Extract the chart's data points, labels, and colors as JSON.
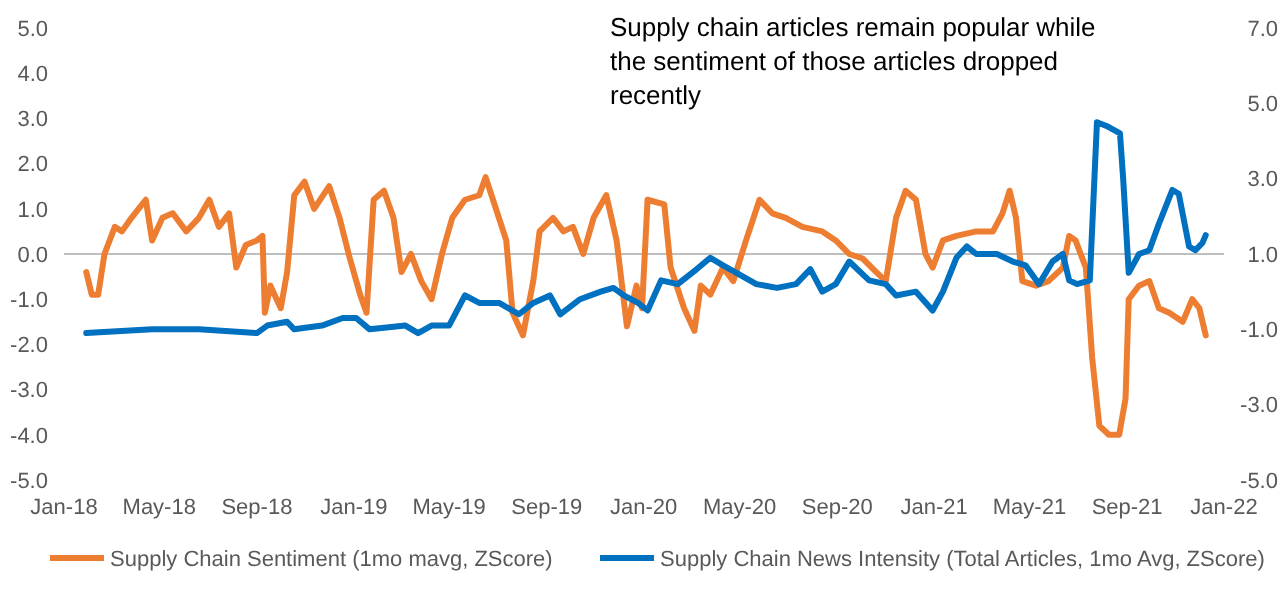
{
  "chart_data": {
    "type": "line",
    "title": "Supply chain articles remain popular while the sentiment of those articles dropped recently",
    "xlim": [
      "2018-01-01",
      "2022-01-01"
    ],
    "xticks": [
      {
        "value": "2018-01-01",
        "label": "Jan-18"
      },
      {
        "value": "2018-05-01",
        "label": "May-18"
      },
      {
        "value": "2018-09-01",
        "label": "Sep-18"
      },
      {
        "value": "2019-01-01",
        "label": "Jan-19"
      },
      {
        "value": "2019-05-01",
        "label": "May-19"
      },
      {
        "value": "2019-09-01",
        "label": "Sep-19"
      },
      {
        "value": "2020-01-01",
        "label": "Jan-20"
      },
      {
        "value": "2020-05-01",
        "label": "May-20"
      },
      {
        "value": "2020-09-01",
        "label": "Sep-20"
      },
      {
        "value": "2021-01-01",
        "label": "Jan-21"
      },
      {
        "value": "2021-05-01",
        "label": "May-21"
      },
      {
        "value": "2021-09-01",
        "label": "Sep-21"
      },
      {
        "value": "2022-01-01",
        "label": "Jan-22"
      }
    ],
    "ylim": [
      -5,
      5
    ],
    "yticks": [
      {
        "value": -5,
        "label": "-5.0"
      },
      {
        "value": -4,
        "label": "-4.0"
      },
      {
        "value": -3,
        "label": "-3.0"
      },
      {
        "value": -2,
        "label": "-2.0"
      },
      {
        "value": -1,
        "label": "-1.0"
      },
      {
        "value": 0,
        "label": "0.0"
      },
      {
        "value": 1,
        "label": "1.0"
      },
      {
        "value": 2,
        "label": "2.0"
      },
      {
        "value": 3,
        "label": "3.0"
      },
      {
        "value": 4,
        "label": "4.0"
      },
      {
        "value": 5,
        "label": "5.0"
      }
    ],
    "y2lim": [
      -5,
      7
    ],
    "y2ticks": [
      {
        "value": -5,
        "label": "-5.0"
      },
      {
        "value": -3,
        "label": "-3.0"
      },
      {
        "value": -1,
        "label": "-1.0"
      },
      {
        "value": 1,
        "label": "1.0"
      },
      {
        "value": 3,
        "label": "3.0"
      },
      {
        "value": 5,
        "label": "5.0"
      },
      {
        "value": 7,
        "label": "7.0"
      }
    ],
    "ref_lines": [
      {
        "axis": "y",
        "value": 0,
        "color": "#bfbfbf"
      }
    ],
    "legend": "bottom",
    "series": [
      {
        "name": "Supply Chain Sentiment (1mo mavg, ZScore)",
        "color": "#ed7d31",
        "x": [
          "2018-01-29",
          "2018-02-05",
          "2018-02-13",
          "2018-02-21",
          "2018-03-06",
          "2018-03-15",
          "2018-03-27",
          "2018-04-14",
          "2018-04-22",
          "2018-05-05",
          "2018-05-18",
          "2018-06-04",
          "2018-06-20",
          "2018-07-03",
          "2018-07-15",
          "2018-07-28",
          "2018-08-06",
          "2018-08-18",
          "2018-09-01",
          "2018-09-08",
          "2018-09-11",
          "2018-09-18",
          "2018-10-01",
          "2018-10-09",
          "2018-10-18",
          "2018-10-31",
          "2018-11-12",
          "2018-12-01",
          "2018-12-14",
          "2018-12-27",
          "2019-01-09",
          "2019-01-17",
          "2019-01-26",
          "2019-02-08",
          "2019-02-20",
          "2019-03-02",
          "2019-03-14",
          "2019-03-27",
          "2019-04-09",
          "2019-04-22",
          "2019-05-05",
          "2019-05-21",
          "2019-06-08",
          "2019-06-16",
          "2019-06-29",
          "2019-07-12",
          "2019-07-20",
          "2019-08-02",
          "2019-08-15",
          "2019-08-23",
          "2019-09-09",
          "2019-09-22",
          "2019-10-04",
          "2019-10-17",
          "2019-10-30",
          "2019-11-15",
          "2019-11-28",
          "2019-12-11",
          "2019-12-23",
          "2019-12-30",
          "2020-01-06",
          "2020-01-27",
          "2020-02-04",
          "2020-02-21",
          "2020-03-05",
          "2020-03-13",
          "2020-03-25",
          "2020-04-10",
          "2020-04-23",
          "2020-05-09",
          "2020-05-26",
          "2020-06-11",
          "2020-06-28",
          "2020-07-19",
          "2020-08-13",
          "2020-08-30",
          "2020-09-16",
          "2020-10-03",
          "2020-10-20",
          "2020-11-01",
          "2020-11-14",
          "2020-11-26",
          "2020-12-09",
          "2020-12-21",
          "2020-12-30",
          "2021-01-12",
          "2021-01-29",
          "2021-02-23",
          "2021-03-16",
          "2021-03-28",
          "2021-04-06",
          "2021-04-14",
          "2021-04-22",
          "2021-05-09",
          "2021-05-25",
          "2021-06-12",
          "2021-06-20",
          "2021-06-28",
          "2021-07-11",
          "2021-07-19",
          "2021-07-28",
          "2021-08-09",
          "2021-08-22",
          "2021-08-30",
          "2021-09-03",
          "2021-09-16",
          "2021-09-29",
          "2021-10-11",
          "2021-10-24",
          "2021-11-10",
          "2021-11-22",
          "2021-12-01",
          "2021-12-09"
        ],
        "values": [
          -0.4,
          -0.9,
          -0.9,
          0.0,
          0.6,
          0.5,
          0.8,
          1.2,
          0.3,
          0.8,
          0.9,
          0.5,
          0.8,
          1.2,
          0.6,
          0.9,
          -0.3,
          0.2,
          0.3,
          0.4,
          -1.3,
          -0.7,
          -1.2,
          -0.4,
          1.3,
          1.6,
          1.0,
          1.5,
          0.8,
          -0.1,
          -0.9,
          -1.3,
          1.2,
          1.4,
          0.8,
          -0.4,
          0.0,
          -0.6,
          -1.0,
          0.0,
          0.8,
          1.2,
          1.3,
          1.7,
          1.0,
          0.3,
          -1.3,
          -1.8,
          -0.6,
          0.5,
          0.8,
          0.5,
          0.6,
          0.0,
          0.8,
          1.3,
          0.3,
          -1.6,
          -0.7,
          -1.2,
          1.2,
          1.1,
          -0.3,
          -1.2,
          -1.7,
          -0.7,
          -0.9,
          -0.3,
          -0.6,
          0.3,
          1.2,
          0.9,
          0.8,
          0.6,
          0.5,
          0.3,
          0.0,
          -0.1,
          -0.4,
          -0.6,
          0.8,
          1.4,
          1.2,
          0.0,
          -0.3,
          0.3,
          0.4,
          0.5,
          0.5,
          0.9,
          1.4,
          0.8,
          -0.6,
          -0.7,
          -0.6,
          -0.3,
          0.4,
          0.3,
          -0.3,
          -2.3,
          -3.8,
          -4.0,
          -4.0,
          -3.2,
          -1.0,
          -0.7,
          -0.6,
          -1.2,
          -1.3,
          -1.5,
          -1.0,
          -1.2,
          -1.8
        ]
      },
      {
        "name": "Supply Chain News Intensity (Total Articles, 1mo Avg, ZScore)",
        "color": "#0070c0",
        "axis": "y2",
        "x": [
          "2018-01-29",
          "2018-04-22",
          "2018-06-20",
          "2018-09-01",
          "2018-09-14",
          "2018-10-09",
          "2018-10-18",
          "2018-11-22",
          "2018-12-18",
          "2019-01-04",
          "2019-01-21",
          "2019-03-07",
          "2019-03-23",
          "2019-04-09",
          "2019-05-01",
          "2019-05-21",
          "2019-06-08",
          "2019-07-03",
          "2019-07-28",
          "2019-08-15",
          "2019-09-05",
          "2019-09-18",
          "2019-10-13",
          "2019-11-08",
          "2019-11-24",
          "2019-12-07",
          "2019-12-25",
          "2020-01-06",
          "2020-01-23",
          "2020-02-13",
          "2020-03-08",
          "2020-03-25",
          "2020-04-10",
          "2020-04-27",
          "2020-05-22",
          "2020-06-17",
          "2020-07-11",
          "2020-07-29",
          "2020-08-13",
          "2020-08-30",
          "2020-09-16",
          "2020-10-11",
          "2020-11-01",
          "2020-11-14",
          "2020-12-09",
          "2020-12-30",
          "2021-01-12",
          "2021-01-29",
          "2021-02-11",
          "2021-02-23",
          "2021-03-21",
          "2021-04-10",
          "2021-04-26",
          "2021-05-13",
          "2021-05-30",
          "2021-06-12",
          "2021-06-20",
          "2021-06-30",
          "2021-07-16",
          "2021-07-25",
          "2021-08-06",
          "2021-08-23",
          "2021-08-27",
          "2021-09-03",
          "2021-09-16",
          "2021-09-29",
          "2021-10-11",
          "2021-10-28",
          "2021-11-05",
          "2021-11-18",
          "2021-11-26",
          "2021-12-05",
          "2021-12-09"
        ],
        "values": [
          -1.1,
          -1.0,
          -1.0,
          -1.1,
          -0.9,
          -0.8,
          -1.0,
          -0.9,
          -0.7,
          -0.7,
          -1.0,
          -0.9,
          -1.1,
          -0.9,
          -0.9,
          -0.1,
          -0.3,
          -0.3,
          -0.6,
          -0.3,
          -0.1,
          -0.6,
          -0.2,
          0.0,
          0.1,
          -0.1,
          -0.3,
          -0.5,
          0.3,
          0.2,
          0.6,
          0.9,
          0.7,
          0.5,
          0.2,
          0.1,
          0.2,
          0.6,
          0.0,
          0.2,
          0.8,
          0.3,
          0.2,
          -0.1,
          0.0,
          -0.5,
          0.0,
          0.9,
          1.2,
          1.0,
          1.0,
          0.8,
          0.7,
          0.2,
          0.8,
          1.0,
          0.3,
          0.2,
          0.3,
          4.5,
          4.4,
          4.2,
          3.0,
          0.5,
          1.0,
          1.1,
          1.8,
          2.7,
          2.6,
          1.2,
          1.1,
          1.3,
          1.5
        ]
      }
    ]
  }
}
